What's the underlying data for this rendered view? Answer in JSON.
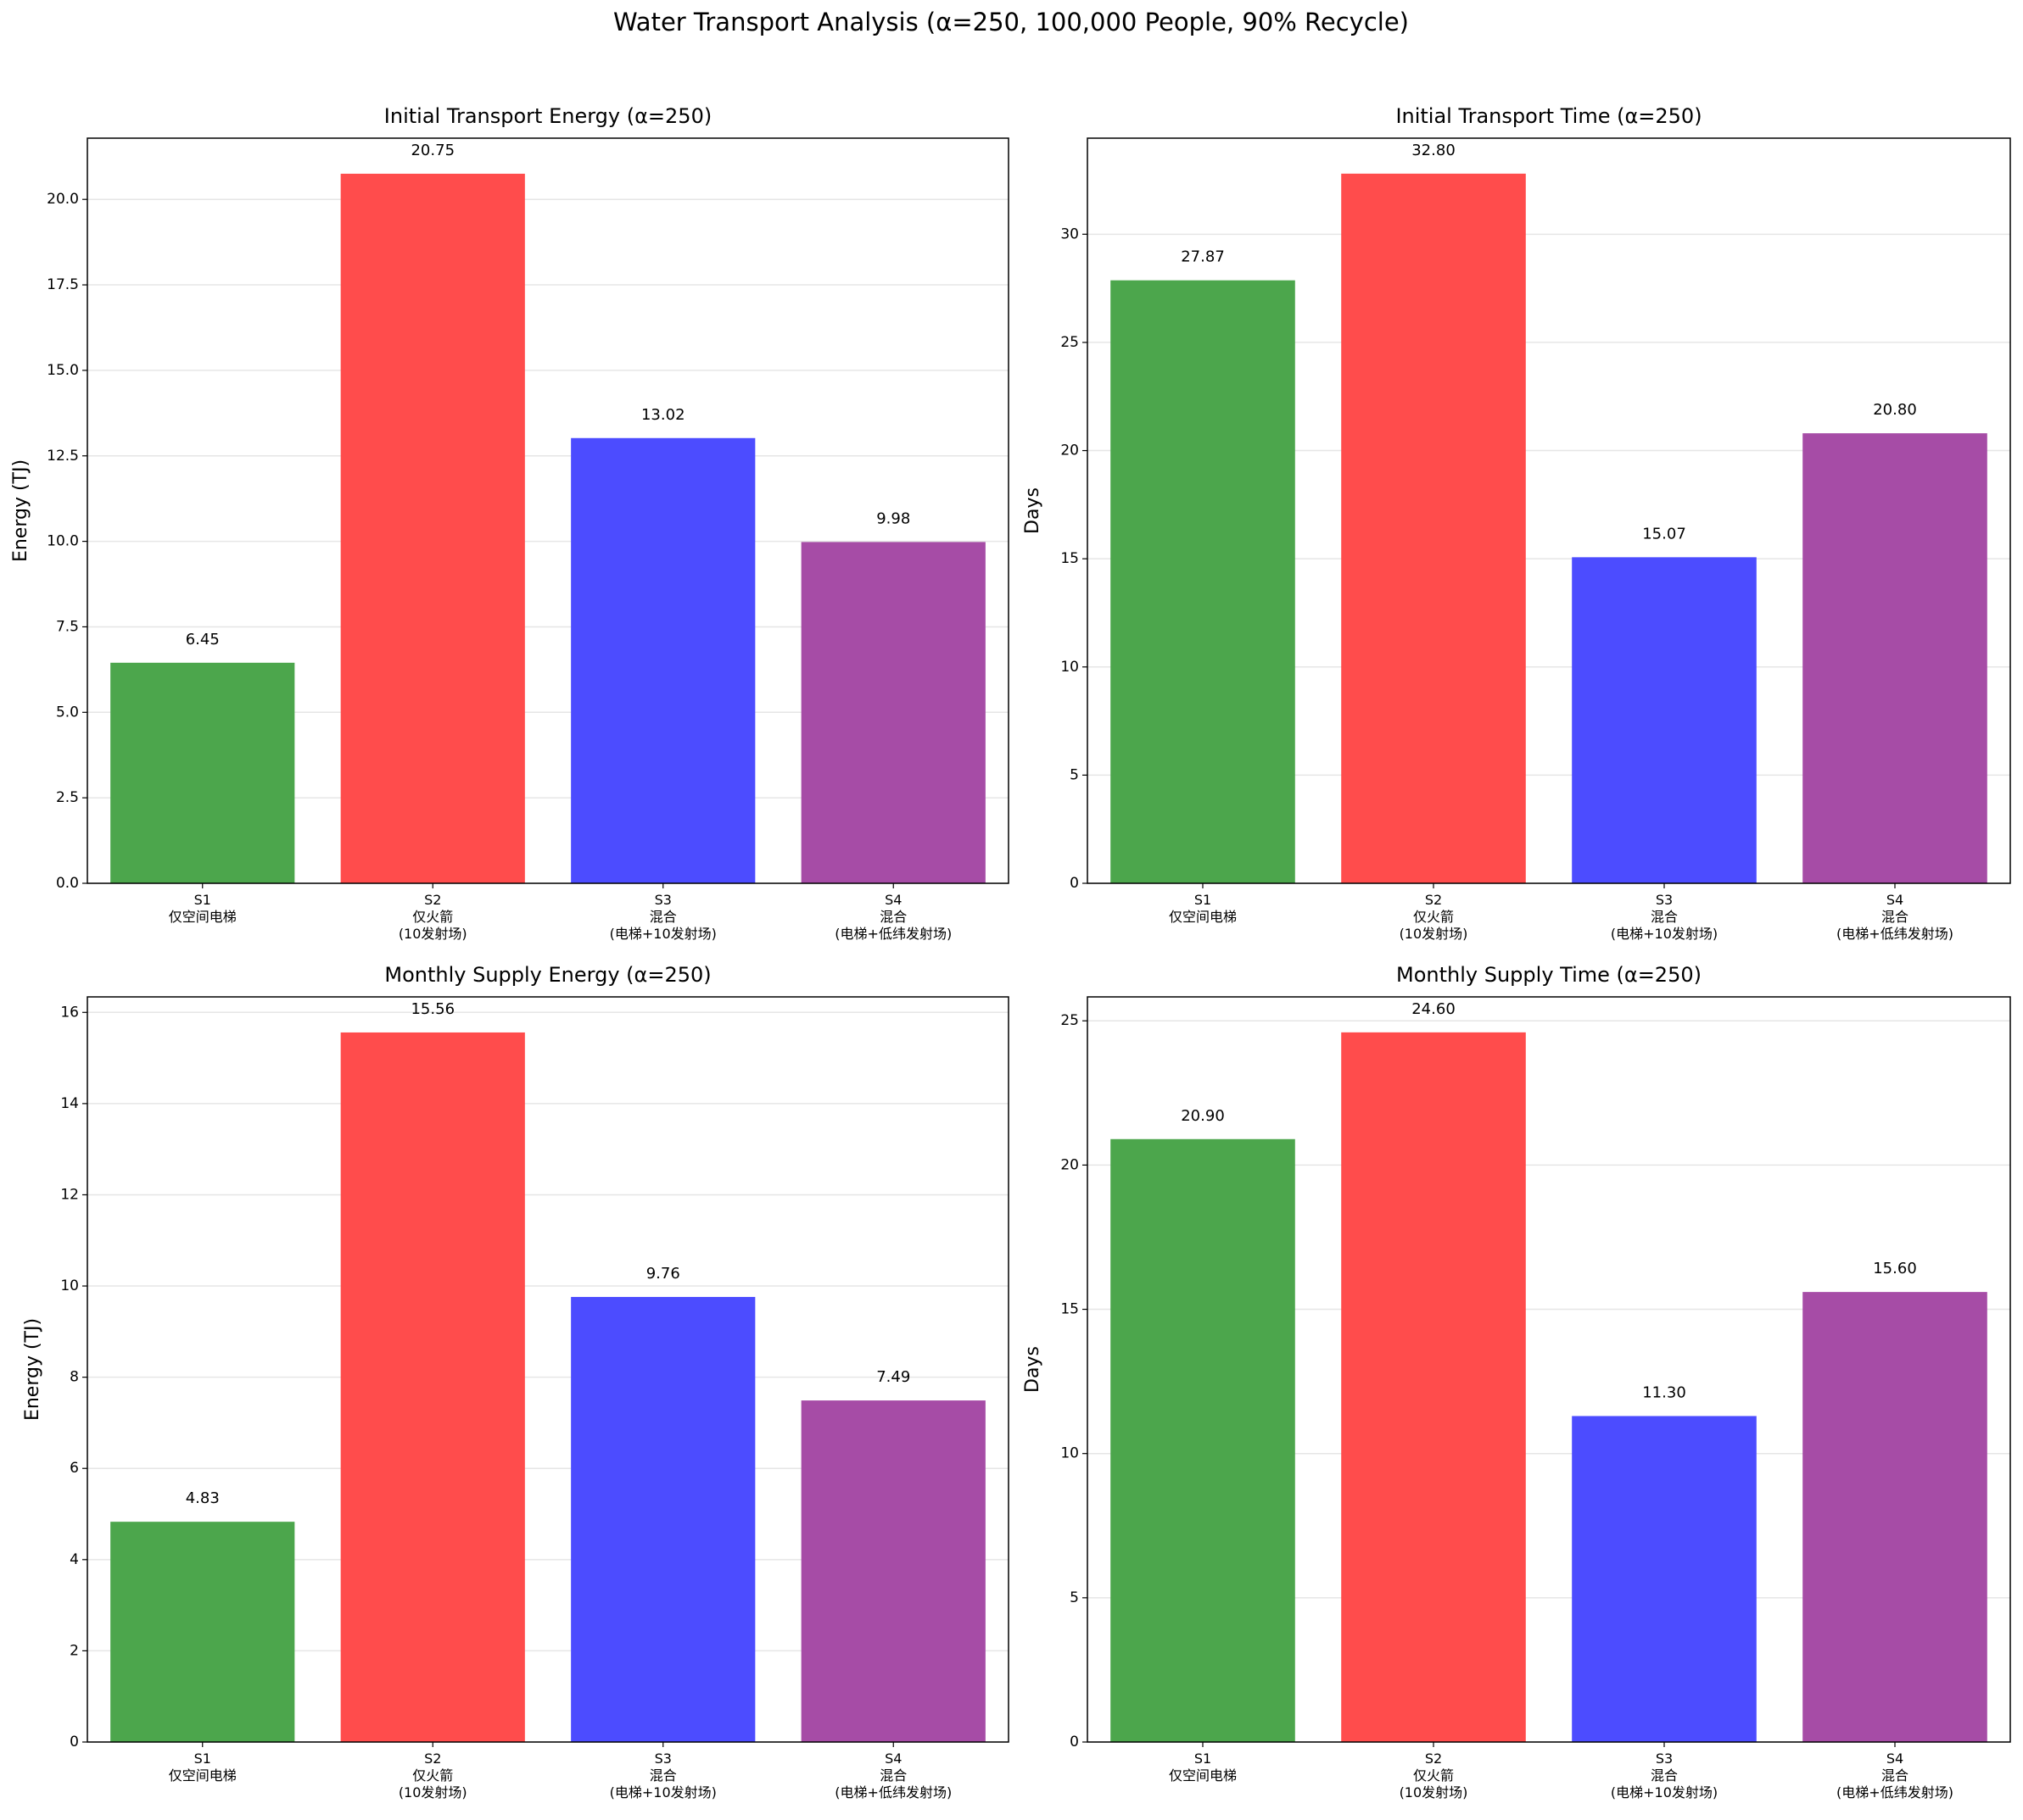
{
  "title": "Water Transport Analysis (α=250, 100,000 People, 90% Recycle)",
  "chart_data": [
    {
      "type": "bar",
      "title": "Initial Transport Energy (α=250)",
      "ylabel": "Energy (TJ)",
      "categories": [
        "S1\n仅空间电梯",
        "S2\n仅火箭\n(10发射场)",
        "S3\n混合\n(电梯+10发射场)",
        "S4\n混合\n(电梯+低纬发射场)"
      ],
      "values": [
        6.45,
        20.75,
        13.02,
        9.98
      ],
      "value_labels": [
        "6.45",
        "20.75",
        "13.02",
        "9.98"
      ],
      "colors": [
        "#4ca64c",
        "#ff4c4c",
        "#4c4cff",
        "#a64ca6"
      ],
      "ylim": [
        0,
        21.79
      ],
      "yticks": [
        {
          "value": 0,
          "label": "0.0"
        },
        {
          "value": 2.5,
          "label": "2.5"
        },
        {
          "value": 5,
          "label": "5.0"
        },
        {
          "value": 7.5,
          "label": "7.5"
        },
        {
          "value": 10,
          "label": "10.0"
        },
        {
          "value": 12.5,
          "label": "12.5"
        },
        {
          "value": 15,
          "label": "15.0"
        },
        {
          "value": 17.5,
          "label": "17.5"
        },
        {
          "value": 20,
          "label": "20.0"
        }
      ],
      "grid": true
    },
    {
      "type": "bar",
      "title": "Initial Transport Time (α=250)",
      "ylabel": "Days",
      "categories": [
        "S1\n仅空间电梯",
        "S2\n仅火箭\n(10发射场)",
        "S3\n混合\n(电梯+10发射场)",
        "S4\n混合\n(电梯+低纬发射场)"
      ],
      "values": [
        27.87,
        32.8,
        15.07,
        20.8
      ],
      "value_labels": [
        "27.87",
        "32.80",
        "15.07",
        "20.80"
      ],
      "colors": [
        "#4ca64c",
        "#ff4c4c",
        "#4c4cff",
        "#a64ca6"
      ],
      "ylim": [
        0,
        34.44
      ],
      "yticks": [
        0,
        5,
        10,
        15,
        20,
        25,
        30
      ],
      "grid": true
    },
    {
      "type": "bar",
      "title": "Monthly Supply Energy (α=250)",
      "ylabel": "Energy (TJ)",
      "categories": [
        "S1\n仅空间电梯",
        "S2\n仅火箭\n(10发射场)",
        "S3\n混合\n(电梯+10发射场)",
        "S4\n混合\n(电梯+低纬发射场)"
      ],
      "values": [
        4.83,
        15.56,
        9.76,
        7.49
      ],
      "value_labels": [
        "4.83",
        "15.56",
        "9.76",
        "7.49"
      ],
      "colors": [
        "#4ca64c",
        "#ff4c4c",
        "#4c4cff",
        "#a64ca6"
      ],
      "ylim": [
        0,
        16.34
      ],
      "yticks": [
        0,
        2,
        4,
        6,
        8,
        10,
        12,
        14,
        16
      ],
      "grid": true
    },
    {
      "type": "bar",
      "title": "Monthly Supply Time (α=250)",
      "ylabel": "Days",
      "categories": [
        "S1\n仅空间电梯",
        "S2\n仅火箭\n(10发射场)",
        "S3\n混合\n(电梯+10发射场)",
        "S4\n混合\n(电梯+低纬发射场)"
      ],
      "values": [
        20.9,
        24.6,
        11.3,
        15.6
      ],
      "value_labels": [
        "20.90",
        "24.60",
        "11.30",
        "15.60"
      ],
      "colors": [
        "#4ca64c",
        "#ff4c4c",
        "#4c4cff",
        "#a64ca6"
      ],
      "ylim": [
        0,
        25.83
      ],
      "yticks": [
        0,
        5,
        10,
        15,
        20,
        25
      ],
      "grid": true
    }
  ]
}
